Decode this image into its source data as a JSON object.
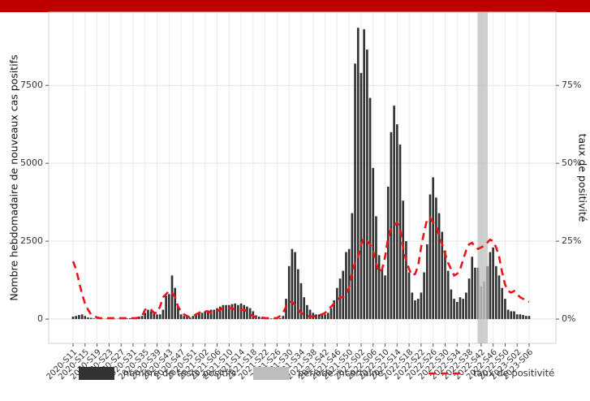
{
  "chart_data": {
    "type": "bar",
    "y_label": "Nombre hebdomadaire de nouveaux cas positifs",
    "y2_label": "taux de positivité",
    "categories": [
      "2020-S11",
      null,
      null,
      null,
      "2020-S15",
      null,
      null,
      null,
      "2020-S19",
      null,
      null,
      null,
      "2020-S23",
      null,
      null,
      null,
      "2020-S27",
      null,
      null,
      null,
      "2020-S31",
      null,
      null,
      null,
      "2020-S35",
      null,
      null,
      null,
      "2020-S39",
      null,
      null,
      null,
      "2020-S43",
      null,
      null,
      null,
      "2020-S47",
      null,
      null,
      null,
      "2020-S51",
      null,
      null,
      null,
      "2021-S02",
      null,
      null,
      null,
      "2021-S06",
      null,
      null,
      null,
      "2021-S10",
      null,
      null,
      null,
      "2021-S14",
      null,
      null,
      null,
      "2021-S18",
      null,
      null,
      null,
      "2021-S22",
      null,
      null,
      null,
      "2021-S26",
      null,
      null,
      null,
      "2021-S30",
      null,
      null,
      null,
      "2021-S34",
      null,
      null,
      null,
      "2021-S38",
      null,
      null,
      null,
      "2021-S42",
      null,
      null,
      null,
      "2021-S46",
      null,
      null,
      null,
      "2021-S50",
      null,
      null,
      null,
      "2022-S02",
      null,
      null,
      null,
      "2022-S06",
      null,
      null,
      null,
      "2022-S10",
      null,
      null,
      null,
      "2022-S14",
      null,
      null,
      null,
      "2022-S18",
      null,
      null,
      null,
      "2022-S22",
      null,
      null,
      null,
      "2022-S26",
      null,
      null,
      null,
      "2022-S30",
      null,
      null,
      null,
      "2022-S34",
      null,
      null,
      null,
      "2022-S38",
      null,
      null,
      null,
      "2022-S42",
      null,
      null,
      null,
      "2022-S46",
      null,
      null,
      null,
      "2022-S50",
      null,
      null,
      null,
      "2023-S02",
      null,
      null,
      null,
      "2023-S06"
    ],
    "series": [
      {
        "name": "nombre de tests positifs",
        "type": "bar",
        "color": "#333333",
        "values": [
          80,
          100,
          130,
          150,
          100,
          50,
          40,
          20,
          10,
          10,
          10,
          10,
          10,
          10,
          10,
          10,
          20,
          20,
          20,
          30,
          40,
          50,
          80,
          100,
          200,
          300,
          250,
          200,
          150,
          150,
          300,
          750,
          800,
          1400,
          1000,
          400,
          150,
          100,
          80,
          50,
          100,
          150,
          200,
          200,
          250,
          250,
          300,
          300,
          350,
          400,
          450,
          450,
          450,
          480,
          500,
          450,
          500,
          450,
          400,
          350,
          250,
          120,
          80,
          50,
          30,
          20,
          20,
          20,
          20,
          30,
          100,
          650,
          1700,
          2250,
          2150,
          1600,
          1150,
          700,
          450,
          300,
          200,
          150,
          150,
          150,
          150,
          200,
          350,
          600,
          1000,
          1300,
          1550,
          2150,
          2250,
          3400,
          8200,
          9350,
          7900,
          9300,
          8650,
          7100,
          4850,
          3300,
          2050,
          1600,
          1400,
          4250,
          6000,
          6850,
          6250,
          5600,
          3800,
          2500,
          1500,
          850,
          600,
          650,
          850,
          1500,
          2400,
          4000,
          4550,
          3900,
          3400,
          2800,
          2200,
          1550,
          950,
          650,
          550,
          700,
          650,
          850,
          1300,
          2000,
          1650,
          1650,
          null,
          null,
          1700,
          2150,
          2300,
          1700,
          1400,
          1000,
          650,
          300,
          250,
          250,
          150,
          150,
          130,
          100,
          100
        ]
      },
      {
        "name": "période incertaine",
        "type": "bar",
        "color": "#bdbdbd",
        "values": [
          null,
          null,
          null,
          null,
          null,
          null,
          null,
          null,
          null,
          null,
          null,
          null,
          null,
          null,
          null,
          null,
          null,
          null,
          null,
          null,
          null,
          null,
          null,
          null,
          null,
          null,
          null,
          null,
          null,
          null,
          null,
          null,
          null,
          null,
          null,
          null,
          null,
          null,
          null,
          null,
          null,
          null,
          null,
          null,
          null,
          null,
          null,
          null,
          null,
          null,
          null,
          null,
          null,
          null,
          null,
          null,
          null,
          null,
          null,
          null,
          null,
          null,
          null,
          null,
          null,
          null,
          null,
          null,
          null,
          null,
          null,
          null,
          null,
          null,
          null,
          null,
          null,
          null,
          null,
          null,
          null,
          null,
          null,
          null,
          null,
          null,
          null,
          null,
          null,
          null,
          null,
          null,
          null,
          null,
          null,
          null,
          null,
          null,
          null,
          null,
          null,
          null,
          null,
          null,
          null,
          null,
          null,
          null,
          null,
          null,
          null,
          null,
          null,
          null,
          null,
          null,
          null,
          null,
          null,
          null,
          null,
          null,
          null,
          null,
          null,
          null,
          null,
          null,
          null,
          null,
          null,
          null,
          null,
          null,
          null,
          null,
          1050,
          1200,
          null,
          null,
          null,
          null,
          null,
          null,
          null,
          null,
          null,
          null,
          null,
          null,
          null,
          null,
          null
        ]
      },
      {
        "name": "taux de positivité",
        "type": "line",
        "axis": "y2",
        "color": "#e8151b",
        "values": [
          18.5,
          16,
          12,
          8,
          5,
          3,
          1.5,
          1,
          0.5,
          0.3,
          0.3,
          0.3,
          0.3,
          0.3,
          0.3,
          0.3,
          0.3,
          0.3,
          0.3,
          0.3,
          0.3,
          0.3,
          0.5,
          1,
          3,
          3.5,
          3,
          2,
          2,
          4,
          7,
          8,
          9,
          8.5,
          7,
          4,
          2.5,
          1.5,
          1,
          0.5,
          1,
          1.5,
          2,
          2.5,
          2.5,
          2.5,
          2,
          2,
          2.5,
          3,
          3.5,
          3.5,
          3.5,
          3.5,
          3,
          3,
          3,
          3,
          2.5,
          1.5,
          1,
          0.5,
          0.5,
          0.5,
          0.3,
          0.3,
          0.3,
          0.3,
          0.3,
          1,
          2,
          4,
          5.5,
          5.5,
          4.5,
          3,
          2,
          1.5,
          1,
          0.8,
          0.8,
          1,
          1.2,
          1.5,
          2,
          3,
          4,
          5,
          6,
          7,
          7,
          8,
          10,
          15,
          18,
          20,
          24,
          26,
          25,
          24,
          22,
          18,
          15,
          16,
          20,
          26,
          29,
          30,
          31,
          29,
          23,
          19,
          16,
          14,
          14.5,
          17,
          23,
          28,
          32,
          32.5,
          31,
          30,
          27,
          24,
          21,
          18,
          16,
          14,
          14.5,
          16,
          19,
          22,
          24,
          24.5,
          23,
          22.5,
          23,
          23.5,
          24.5,
          25.5,
          25,
          23,
          20,
          15,
          11,
          9,
          8.5,
          9,
          8,
          7,
          6.5,
          6,
          5.5
        ]
      }
    ],
    "ylim": [
      -780,
      9850
    ],
    "yticks": [
      0,
      2500,
      5000,
      7500
    ],
    "y2lim": [
      -7.8,
      98.5
    ],
    "y2ticks": [
      {
        "value": 0,
        "label": "0%"
      },
      {
        "value": 25,
        "label": "25%"
      },
      {
        "value": 50,
        "label": "50%"
      },
      {
        "value": 75,
        "label": "75%"
      }
    ],
    "grid": true,
    "legend": "bottom"
  }
}
